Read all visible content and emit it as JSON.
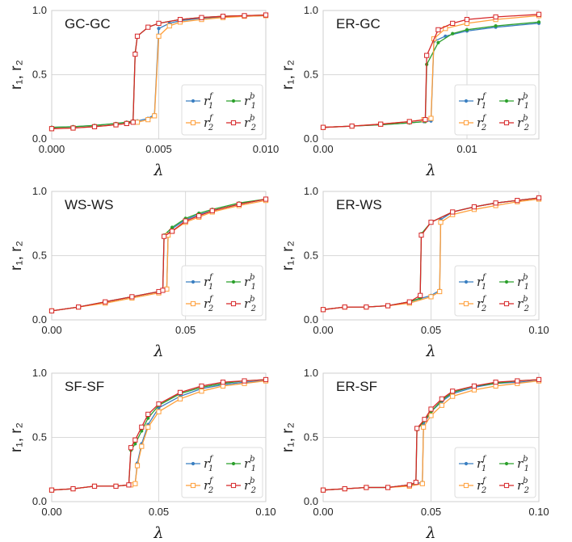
{
  "colors": {
    "r1_forward": "#3a7fc1",
    "r1_backward": "#2ca02c",
    "r2_forward": "#ff9f3a",
    "r2_backward": "#d62728",
    "grid": "#d9d9d9",
    "spine": "#cfcfcf"
  },
  "chart_data": [
    {
      "type": "line",
      "title": "GC-GC",
      "xlabel": "λ",
      "ylabel": "r₁, r₂",
      "xlim": [
        0,
        0.01
      ],
      "ylim": [
        0,
        1
      ],
      "xticks": [
        0.0,
        0.005,
        0.01
      ],
      "xtick_labels": [
        "0.000",
        "0.005",
        "0.010"
      ],
      "yticks": [
        0.0,
        0.5,
        1.0
      ],
      "ytick_labels": [
        "0.0",
        "0.5",
        "1.0"
      ],
      "grid": true,
      "legend_position": "bottom-right",
      "series": [
        {
          "name": "r1f",
          "marker": "dot",
          "color": "#3a7fc1",
          "x": [
            0,
            0.001,
            0.002,
            0.003,
            0.0035,
            0.004,
            0.0045,
            0.0048,
            0.005,
            0.0055,
            0.006,
            0.007,
            0.008,
            0.009,
            0.01
          ],
          "values": [
            0.09,
            0.095,
            0.105,
            0.12,
            0.13,
            0.14,
            0.16,
            0.19,
            0.86,
            0.9,
            0.92,
            0.94,
            0.95,
            0.955,
            0.96
          ]
        },
        {
          "name": "r1b",
          "marker": "dot",
          "color": "#2ca02c",
          "x": [
            0,
            0.001,
            0.002,
            0.003,
            0.0035,
            0.0038,
            0.0039,
            0.004,
            0.0045,
            0.005,
            0.006,
            0.007,
            0.008,
            0.009,
            0.01
          ],
          "values": [
            0.09,
            0.095,
            0.105,
            0.12,
            0.13,
            0.14,
            0.67,
            0.8,
            0.87,
            0.9,
            0.93,
            0.945,
            0.955,
            0.96,
            0.965
          ]
        },
        {
          "name": "r2f",
          "marker": "square",
          "color": "#ff9f3a",
          "x": [
            0,
            0.001,
            0.002,
            0.003,
            0.0035,
            0.004,
            0.0045,
            0.0048,
            0.005,
            0.0055,
            0.006,
            0.007,
            0.008,
            0.009,
            0.01
          ],
          "values": [
            0.08,
            0.085,
            0.095,
            0.11,
            0.12,
            0.13,
            0.15,
            0.18,
            0.8,
            0.88,
            0.91,
            0.93,
            0.945,
            0.955,
            0.96
          ]
        },
        {
          "name": "r2b",
          "marker": "square",
          "color": "#d62728",
          "x": [
            0,
            0.001,
            0.002,
            0.003,
            0.0035,
            0.0038,
            0.0039,
            0.004,
            0.0045,
            0.005,
            0.006,
            0.007,
            0.008,
            0.009,
            0.01
          ],
          "values": [
            0.08,
            0.085,
            0.095,
            0.11,
            0.12,
            0.13,
            0.66,
            0.8,
            0.87,
            0.9,
            0.93,
            0.945,
            0.955,
            0.96,
            0.965
          ]
        }
      ]
    },
    {
      "type": "line",
      "title": "ER-GC",
      "xlabel": "λ",
      "ylabel": "r₁, r₂",
      "xlim": [
        0,
        0.015
      ],
      "ylim": [
        0,
        1
      ],
      "xticks": [
        0.0,
        0.01
      ],
      "xtick_labels": [
        "0.00",
        "0.01"
      ],
      "yticks": [
        0.0,
        0.5,
        1.0
      ],
      "ytick_labels": [
        "0.0",
        "0.5",
        "1.0"
      ],
      "grid": true,
      "legend_position": "bottom-right",
      "series": [
        {
          "name": "r1f",
          "marker": "dot",
          "color": "#3a7fc1",
          "x": [
            0,
            0.002,
            0.004,
            0.006,
            0.007,
            0.0075,
            0.0077,
            0.0085,
            0.01,
            0.012,
            0.015
          ],
          "values": [
            0.09,
            0.1,
            0.11,
            0.125,
            0.135,
            0.14,
            0.76,
            0.8,
            0.84,
            0.87,
            0.9
          ]
        },
        {
          "name": "r1b",
          "marker": "dot",
          "color": "#2ca02c",
          "x": [
            0,
            0.002,
            0.004,
            0.006,
            0.0071,
            0.0072,
            0.008,
            0.009,
            0.01,
            0.012,
            0.015
          ],
          "values": [
            0.09,
            0.1,
            0.11,
            0.125,
            0.135,
            0.58,
            0.75,
            0.82,
            0.85,
            0.88,
            0.91
          ]
        },
        {
          "name": "r2f",
          "marker": "square",
          "color": "#ff9f3a",
          "x": [
            0,
            0.002,
            0.004,
            0.006,
            0.007,
            0.0075,
            0.0077,
            0.0085,
            0.01,
            0.012,
            0.015
          ],
          "values": [
            0.09,
            0.1,
            0.115,
            0.135,
            0.15,
            0.16,
            0.78,
            0.86,
            0.9,
            0.93,
            0.96
          ]
        },
        {
          "name": "r2b",
          "marker": "square",
          "color": "#d62728",
          "x": [
            0,
            0.002,
            0.004,
            0.006,
            0.0071,
            0.0072,
            0.008,
            0.009,
            0.01,
            0.012,
            0.015
          ],
          "values": [
            0.09,
            0.1,
            0.115,
            0.135,
            0.15,
            0.65,
            0.85,
            0.9,
            0.93,
            0.95,
            0.97
          ]
        }
      ]
    },
    {
      "type": "line",
      "title": "WS-WS",
      "xlabel": "λ",
      "ylabel": "r₁, r₂",
      "xlim": [
        0,
        0.08
      ],
      "ylim": [
        0,
        1
      ],
      "xticks": [
        0.0,
        0.05
      ],
      "xtick_labels": [
        "0.00",
        "0.05"
      ],
      "yticks": [
        0.0,
        0.5,
        1.0
      ],
      "ytick_labels": [
        "0.0",
        "0.5",
        "1.0"
      ],
      "grid": true,
      "legend_position": "bottom-right",
      "series": [
        {
          "name": "r1f",
          "marker": "dot",
          "color": "#3a7fc1",
          "x": [
            0,
            0.01,
            0.02,
            0.03,
            0.04,
            0.043,
            0.0435,
            0.045,
            0.05,
            0.055,
            0.06,
            0.07,
            0.08
          ],
          "values": [
            0.07,
            0.1,
            0.14,
            0.18,
            0.22,
            0.24,
            0.67,
            0.71,
            0.78,
            0.82,
            0.85,
            0.9,
            0.94
          ]
        },
        {
          "name": "r1b",
          "marker": "dot",
          "color": "#2ca02c",
          "x": [
            0,
            0.01,
            0.02,
            0.03,
            0.04,
            0.0415,
            0.042,
            0.045,
            0.05,
            0.055,
            0.06,
            0.07,
            0.08
          ],
          "values": [
            0.07,
            0.1,
            0.14,
            0.18,
            0.22,
            0.23,
            0.66,
            0.72,
            0.79,
            0.83,
            0.86,
            0.91,
            0.94
          ]
        },
        {
          "name": "r2f",
          "marker": "square",
          "color": "#ff9f3a",
          "x": [
            0,
            0.01,
            0.02,
            0.03,
            0.04,
            0.043,
            0.0435,
            0.045,
            0.05,
            0.055,
            0.06,
            0.07,
            0.08
          ],
          "values": [
            0.07,
            0.1,
            0.13,
            0.17,
            0.21,
            0.24,
            0.66,
            0.69,
            0.76,
            0.8,
            0.84,
            0.89,
            0.93
          ]
        },
        {
          "name": "r2b",
          "marker": "square",
          "color": "#d62728",
          "x": [
            0,
            0.01,
            0.02,
            0.03,
            0.04,
            0.0415,
            0.042,
            0.045,
            0.05,
            0.055,
            0.06,
            0.07,
            0.08
          ],
          "values": [
            0.07,
            0.1,
            0.14,
            0.18,
            0.22,
            0.23,
            0.65,
            0.69,
            0.77,
            0.81,
            0.85,
            0.9,
            0.94
          ]
        }
      ]
    },
    {
      "type": "line",
      "title": "ER-WS",
      "xlabel": "λ",
      "ylabel": "r₁, r₂",
      "xlim": [
        0,
        0.1
      ],
      "ylim": [
        0,
        1
      ],
      "xticks": [
        0.0,
        0.05,
        0.1
      ],
      "xtick_labels": [
        "0.00",
        "0.05",
        "0.10"
      ],
      "yticks": [
        0.0,
        0.5,
        1.0
      ],
      "ytick_labels": [
        "0.0",
        "0.5",
        "1.0"
      ],
      "grid": true,
      "legend_position": "bottom-right",
      "series": [
        {
          "name": "r1f",
          "marker": "dot",
          "color": "#3a7fc1",
          "x": [
            0,
            0.01,
            0.02,
            0.03,
            0.04,
            0.05,
            0.054,
            0.0545,
            0.06,
            0.07,
            0.08,
            0.09,
            0.1
          ],
          "values": [
            0.08,
            0.1,
            0.1,
            0.11,
            0.14,
            0.19,
            0.23,
            0.78,
            0.84,
            0.88,
            0.91,
            0.93,
            0.95
          ]
        },
        {
          "name": "r1b",
          "marker": "dot",
          "color": "#2ca02c",
          "x": [
            0,
            0.01,
            0.02,
            0.03,
            0.04,
            0.045,
            0.0455,
            0.05,
            0.06,
            0.07,
            0.08,
            0.09,
            0.1
          ],
          "values": [
            0.08,
            0.1,
            0.1,
            0.11,
            0.14,
            0.17,
            0.67,
            0.76,
            0.84,
            0.88,
            0.91,
            0.93,
            0.95
          ]
        },
        {
          "name": "r2f",
          "marker": "square",
          "color": "#ff9f3a",
          "x": [
            0,
            0.01,
            0.02,
            0.03,
            0.04,
            0.05,
            0.054,
            0.0545,
            0.06,
            0.07,
            0.08,
            0.09,
            0.1
          ],
          "values": [
            0.08,
            0.1,
            0.1,
            0.11,
            0.13,
            0.18,
            0.22,
            0.76,
            0.82,
            0.86,
            0.89,
            0.92,
            0.94
          ]
        },
        {
          "name": "r2b",
          "marker": "square",
          "color": "#d62728",
          "x": [
            0,
            0.01,
            0.02,
            0.03,
            0.04,
            0.045,
            0.0455,
            0.05,
            0.06,
            0.07,
            0.08,
            0.09,
            0.1
          ],
          "values": [
            0.08,
            0.1,
            0.1,
            0.11,
            0.14,
            0.19,
            0.66,
            0.76,
            0.84,
            0.88,
            0.91,
            0.93,
            0.95
          ]
        }
      ]
    },
    {
      "type": "line",
      "title": "SF-SF",
      "xlabel": "λ",
      "ylabel": "r₁, r₂",
      "xlim": [
        0,
        0.1
      ],
      "ylim": [
        0,
        1
      ],
      "xticks": [
        0.0,
        0.05,
        0.1
      ],
      "xtick_labels": [
        "0.00",
        "0.05",
        "0.10"
      ],
      "yticks": [
        0.0,
        0.5,
        1.0
      ],
      "ytick_labels": [
        "0.0",
        "0.5",
        "1.0"
      ],
      "grid": true,
      "legend_position": "bottom-right",
      "series": [
        {
          "name": "r1f",
          "marker": "dot",
          "color": "#3a7fc1",
          "x": [
            0,
            0.01,
            0.02,
            0.03,
            0.037,
            0.039,
            0.04,
            0.042,
            0.045,
            0.05,
            0.06,
            0.07,
            0.08,
            0.09,
            0.1
          ],
          "values": [
            0.09,
            0.1,
            0.12,
            0.12,
            0.13,
            0.14,
            0.3,
            0.45,
            0.6,
            0.73,
            0.82,
            0.88,
            0.91,
            0.93,
            0.94
          ]
        },
        {
          "name": "r1b",
          "marker": "dot",
          "color": "#2ca02c",
          "x": [
            0,
            0.01,
            0.02,
            0.03,
            0.036,
            0.037,
            0.039,
            0.042,
            0.045,
            0.05,
            0.06,
            0.07,
            0.08,
            0.09,
            0.1
          ],
          "values": [
            0.09,
            0.1,
            0.12,
            0.12,
            0.13,
            0.4,
            0.45,
            0.55,
            0.65,
            0.75,
            0.84,
            0.89,
            0.92,
            0.94,
            0.95
          ]
        },
        {
          "name": "r2f",
          "marker": "square",
          "color": "#ff9f3a",
          "x": [
            0,
            0.01,
            0.02,
            0.03,
            0.037,
            0.039,
            0.04,
            0.042,
            0.045,
            0.05,
            0.06,
            0.07,
            0.08,
            0.09,
            0.1
          ],
          "values": [
            0.09,
            0.1,
            0.12,
            0.12,
            0.13,
            0.14,
            0.28,
            0.43,
            0.58,
            0.7,
            0.8,
            0.86,
            0.9,
            0.92,
            0.94
          ]
        },
        {
          "name": "r2b",
          "marker": "square",
          "color": "#d62728",
          "x": [
            0,
            0.01,
            0.02,
            0.03,
            0.036,
            0.037,
            0.039,
            0.042,
            0.045,
            0.05,
            0.06,
            0.07,
            0.08,
            0.09,
            0.1
          ],
          "values": [
            0.09,
            0.1,
            0.12,
            0.12,
            0.13,
            0.42,
            0.48,
            0.58,
            0.68,
            0.76,
            0.85,
            0.9,
            0.93,
            0.94,
            0.95
          ]
        }
      ]
    },
    {
      "type": "line",
      "title": "ER-SF",
      "xlabel": "λ",
      "ylabel": "r₁, r₂",
      "xlim": [
        0,
        0.1
      ],
      "ylim": [
        0,
        1
      ],
      "xticks": [
        0.0,
        0.05,
        0.1
      ],
      "xtick_labels": [
        "0.00",
        "0.05",
        "0.10"
      ],
      "yticks": [
        0.0,
        0.5,
        1.0
      ],
      "ytick_labels": [
        "0.0",
        "0.5",
        "1.0"
      ],
      "grid": true,
      "legend_position": "bottom-right",
      "series": [
        {
          "name": "r1f",
          "marker": "dot",
          "color": "#3a7fc1",
          "x": [
            0,
            0.01,
            0.02,
            0.03,
            0.04,
            0.046,
            0.0465,
            0.05,
            0.055,
            0.06,
            0.07,
            0.08,
            0.09,
            0.1
          ],
          "values": [
            0.09,
            0.1,
            0.11,
            0.11,
            0.13,
            0.15,
            0.6,
            0.7,
            0.78,
            0.84,
            0.89,
            0.92,
            0.93,
            0.94
          ]
        },
        {
          "name": "r1b",
          "marker": "dot",
          "color": "#2ca02c",
          "x": [
            0,
            0.01,
            0.02,
            0.03,
            0.04,
            0.043,
            0.0435,
            0.047,
            0.05,
            0.055,
            0.06,
            0.07,
            0.08,
            0.09,
            0.1
          ],
          "values": [
            0.09,
            0.1,
            0.11,
            0.11,
            0.13,
            0.14,
            0.56,
            0.63,
            0.7,
            0.79,
            0.85,
            0.9,
            0.92,
            0.94,
            0.95
          ]
        },
        {
          "name": "r2f",
          "marker": "square",
          "color": "#ff9f3a",
          "x": [
            0,
            0.01,
            0.02,
            0.03,
            0.04,
            0.046,
            0.0465,
            0.05,
            0.055,
            0.06,
            0.07,
            0.08,
            0.09,
            0.1
          ],
          "values": [
            0.09,
            0.1,
            0.11,
            0.11,
            0.12,
            0.14,
            0.58,
            0.67,
            0.75,
            0.82,
            0.87,
            0.9,
            0.92,
            0.94
          ]
        },
        {
          "name": "r2b",
          "marker": "square",
          "color": "#d62728",
          "x": [
            0,
            0.01,
            0.02,
            0.03,
            0.04,
            0.043,
            0.0435,
            0.047,
            0.05,
            0.055,
            0.06,
            0.07,
            0.08,
            0.09,
            0.1
          ],
          "values": [
            0.09,
            0.1,
            0.11,
            0.11,
            0.13,
            0.15,
            0.57,
            0.64,
            0.72,
            0.8,
            0.86,
            0.9,
            0.93,
            0.94,
            0.95
          ]
        }
      ]
    }
  ]
}
